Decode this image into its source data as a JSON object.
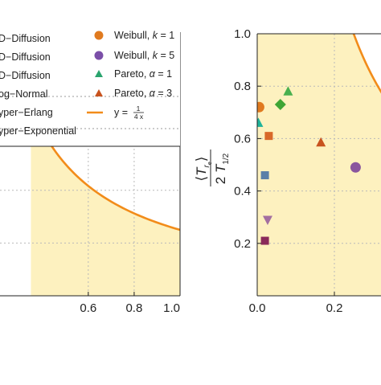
{
  "chart_data": [
    {
      "type": "line",
      "xlim": [
        0.5,
        1.0
      ],
      "ylim": [
        0,
        1.0
      ],
      "grid": true,
      "x_tick_labels": [
        "0.6",
        "0.8",
        "1.0"
      ],
      "x_ticks": [
        0.6,
        0.8,
        1.0
      ],
      "shaded_region": "under-curve",
      "series": [
        {
          "name": "y = 1/(4x)",
          "x": [
            0.5,
            0.55,
            0.6,
            0.65,
            0.7,
            0.75,
            0.8,
            0.85,
            0.9,
            0.95,
            1.0
          ],
          "y": [
            0.5,
            0.4545,
            0.4167,
            0.3846,
            0.3571,
            0.3333,
            0.3125,
            0.2941,
            0.2778,
            0.2632,
            0.25
          ],
          "color": "#f28c1a"
        }
      ],
      "legend": {
        "placement": "top",
        "entries": [
          {
            "label": "D−Diffusion",
            "marker": "none"
          },
          {
            "label": "D−Diffusion",
            "marker": "none"
          },
          {
            "label": "D−Diffusion",
            "marker": "none"
          },
          {
            "label": "og−Normal",
            "marker": "none"
          },
          {
            "label": "yper−Erlang",
            "marker": "none"
          },
          {
            "label": "yper−Exponential",
            "marker": "none"
          },
          {
            "label": "Weibull, k = 1",
            "marker": "circle",
            "color": "#e07a1f"
          },
          {
            "label": "Weibull, k = 5",
            "marker": "circle",
            "color": "#7b4fa8"
          },
          {
            "label": "Pareto, α = 1",
            "marker": "triangle-up",
            "color": "#2aa46e"
          },
          {
            "label": "Pareto, α = 3",
            "marker": "triangle-up",
            "color": "#c8531e"
          },
          {
            "label": "y = 1/(4x)",
            "marker": "line",
            "color": "#f28c1a"
          }
        ]
      }
    },
    {
      "type": "scatter",
      "xlim": [
        0,
        0.5
      ],
      "ylim": [
        0,
        1.0
      ],
      "grid": true,
      "x_tick_labels": [
        "0.0",
        "0.2"
      ],
      "x_ticks": [
        0.0,
        0.2
      ],
      "y_tick_labels": [
        "0.2",
        "0.4",
        "0.6",
        "0.8",
        "1.0"
      ],
      "y_ticks": [
        0.2,
        0.4,
        0.6,
        0.8,
        1.0
      ],
      "ylabel_numerator": "⟨T",
      "ylabel_denominator": "2 T",
      "shaded_region": "under-curve",
      "curve": {
        "x": [
          0.25,
          0.26,
          0.28,
          0.3,
          0.32,
          0.34,
          0.36,
          0.38,
          0.4,
          0.42
        ],
        "y": [
          1.0,
          0.9615,
          0.8929,
          0.8333,
          0.7813,
          0.7353,
          0.6944,
          0.6579,
          0.625,
          0.5952
        ],
        "color": "#f28c1a"
      },
      "points": [
        {
          "x": 0.005,
          "y": 0.72,
          "shape": "circle",
          "color": "#e07a1f"
        },
        {
          "x": 0.003,
          "y": 0.66,
          "shape": "triangle-up",
          "color": "#1fb39a"
        },
        {
          "x": 0.08,
          "y": 0.78,
          "shape": "triangle-up",
          "color": "#49b04f"
        },
        {
          "x": 0.06,
          "y": 0.73,
          "shape": "diamond",
          "color": "#3fa535"
        },
        {
          "x": 0.03,
          "y": 0.61,
          "shape": "square",
          "color": "#d8692a"
        },
        {
          "x": 0.165,
          "y": 0.585,
          "shape": "triangle-up",
          "color": "#c8531e"
        },
        {
          "x": 0.255,
          "y": 0.49,
          "shape": "circle",
          "color": "#8a569e"
        },
        {
          "x": 0.02,
          "y": 0.46,
          "shape": "square",
          "color": "#5a7fa8"
        },
        {
          "x": 0.027,
          "y": 0.29,
          "shape": "triangle-down",
          "color": "#a36fa0"
        },
        {
          "x": 0.02,
          "y": 0.21,
          "shape": "square",
          "color": "#8a2a5a"
        }
      ]
    }
  ]
}
